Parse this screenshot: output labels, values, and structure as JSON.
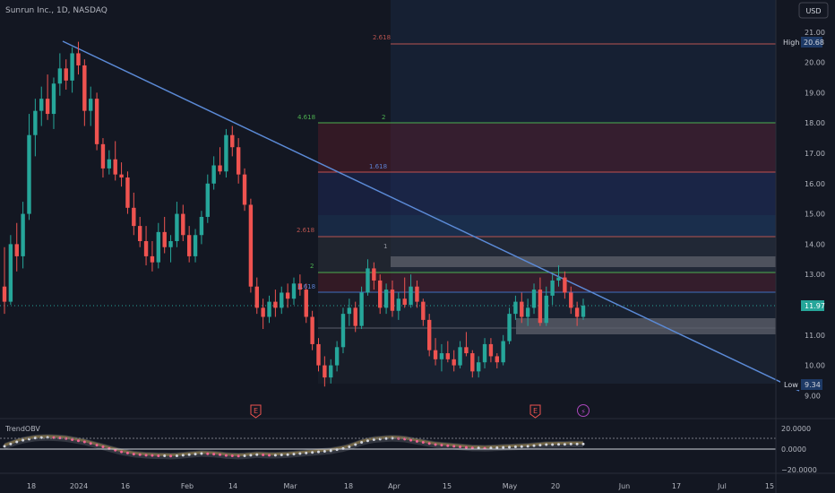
{
  "header": {
    "title": "Sunrun Inc., 1D, NASDAQ",
    "currency_button": "USD"
  },
  "price_axis": {
    "ticks": [
      {
        "label": "21.00",
        "value": 21.0
      },
      {
        "label": "20.00",
        "value": 20.0
      },
      {
        "label": "19.00",
        "value": 19.0
      },
      {
        "label": "18.00",
        "value": 18.0
      },
      {
        "label": "17.00",
        "value": 17.0
      },
      {
        "label": "16.00",
        "value": 16.0
      },
      {
        "label": "15.00",
        "value": 15.0
      },
      {
        "label": "14.00",
        "value": 14.0
      },
      {
        "label": "13.00",
        "value": 13.0
      },
      {
        "label": "11.00",
        "value": 11.0
      },
      {
        "label": "10.00",
        "value": 10.0
      },
      {
        "label": "9.00",
        "value": 9.0
      }
    ],
    "high_label": "High",
    "high_value": "20.68",
    "last_value": "11.97",
    "low_label": "Low",
    "low_value": "9.34"
  },
  "time_axis": {
    "ticks": [
      "18",
      "2024",
      "16",
      "Feb",
      "14",
      "Mar",
      "18",
      "Apr",
      "15",
      "May",
      "20",
      "Jun",
      "17",
      "Jul",
      "15"
    ]
  },
  "fib_labels": [
    {
      "label": "2.618",
      "price": 20.6
    },
    {
      "label": "4.618",
      "price": 18.0
    },
    {
      "label": "2",
      "price": 18.0
    },
    {
      "label": "1.618",
      "price": 16.6
    },
    {
      "label": "2.618",
      "price": 14.3
    },
    {
      "label": "1",
      "price": 14.0
    },
    {
      "label": "2",
      "price": 13.2
    },
    {
      "label": "1.618",
      "price": 12.5
    }
  ],
  "event_markers": [
    {
      "icon": "earnings-icon",
      "label": "E"
    },
    {
      "icon": "earnings-icon",
      "label": "E"
    },
    {
      "icon": "dividend-lightning-icon",
      "label": "⚡"
    }
  ],
  "indicator": {
    "title": "TrendOBV",
    "ticks": [
      {
        "label": "20.0000",
        "value": 20
      },
      {
        "label": "0.0000",
        "value": 0
      },
      {
        "label": "−20.0000",
        "value": -20
      }
    ]
  },
  "colors": {
    "background": "#131722",
    "up": "#26a69a",
    "down": "#ef5350",
    "trendline": "#5b8ad6"
  },
  "chart_data": {
    "type": "candlestick",
    "y_range": [
      9.0,
      21.5
    ],
    "trendline": {
      "from": 20.68,
      "to": 9.0
    },
    "high": 20.68,
    "low": 9.34,
    "last": 11.97,
    "candles": [
      [
        12.6,
        13.9,
        11.7,
        12.1
      ],
      [
        12.1,
        14.3,
        12.0,
        14.0
      ],
      [
        14.0,
        14.7,
        13.1,
        13.6
      ],
      [
        13.6,
        15.4,
        13.2,
        15.0
      ],
      [
        15.0,
        18.3,
        14.8,
        17.6
      ],
      [
        17.6,
        18.8,
        16.9,
        18.4
      ],
      [
        18.4,
        19.2,
        17.9,
        18.8
      ],
      [
        18.8,
        19.6,
        18.1,
        18.3
      ],
      [
        18.3,
        19.5,
        17.8,
        19.3
      ],
      [
        19.3,
        20.3,
        18.9,
        19.8
      ],
      [
        19.8,
        20.1,
        19.1,
        19.4
      ],
      [
        19.4,
        20.5,
        19.0,
        20.3
      ],
      [
        20.3,
        20.68,
        19.6,
        19.9
      ],
      [
        19.9,
        20.1,
        17.9,
        18.4
      ],
      [
        18.4,
        19.2,
        17.9,
        18.8
      ],
      [
        18.8,
        19.0,
        17.1,
        17.3
      ],
      [
        17.3,
        17.5,
        16.2,
        16.5
      ],
      [
        16.5,
        17.1,
        16.3,
        16.8
      ],
      [
        16.8,
        17.4,
        16.1,
        16.3
      ],
      [
        16.3,
        16.7,
        15.9,
        16.2
      ],
      [
        16.2,
        16.4,
        15.0,
        15.2
      ],
      [
        15.2,
        15.7,
        14.3,
        14.6
      ],
      [
        14.6,
        14.9,
        13.9,
        14.1
      ],
      [
        14.1,
        14.6,
        13.3,
        13.6
      ],
      [
        13.6,
        14.1,
        13.1,
        13.4
      ],
      [
        13.4,
        14.7,
        13.2,
        14.4
      ],
      [
        14.4,
        14.9,
        13.7,
        13.9
      ],
      [
        13.9,
        14.3,
        13.4,
        14.1
      ],
      [
        14.1,
        15.4,
        13.9,
        15.0
      ],
      [
        15.0,
        15.3,
        14.1,
        14.3
      ],
      [
        14.3,
        14.6,
        13.4,
        13.6
      ],
      [
        13.6,
        14.5,
        13.4,
        14.3
      ],
      [
        14.3,
        15.1,
        14.0,
        14.9
      ],
      [
        14.9,
        16.3,
        14.7,
        16.0
      ],
      [
        16.0,
        16.9,
        15.8,
        16.6
      ],
      [
        16.6,
        17.2,
        16.3,
        16.4
      ],
      [
        16.4,
        17.8,
        16.2,
        17.6
      ],
      [
        17.6,
        17.9,
        16.9,
        17.2
      ],
      [
        17.2,
        17.5,
        16.0,
        16.3
      ],
      [
        16.3,
        16.5,
        15.1,
        15.3
      ],
      [
        15.3,
        15.5,
        12.4,
        12.6
      ],
      [
        12.6,
        12.9,
        11.7,
        11.9
      ],
      [
        11.9,
        12.2,
        11.2,
        11.6
      ],
      [
        11.6,
        12.3,
        11.4,
        12.1
      ],
      [
        12.1,
        12.5,
        11.6,
        11.9
      ],
      [
        11.9,
        12.6,
        11.7,
        12.4
      ],
      [
        12.4,
        12.7,
        11.9,
        12.2
      ],
      [
        12.2,
        12.9,
        12.0,
        12.7
      ],
      [
        12.7,
        13.0,
        12.3,
        12.5
      ],
      [
        12.5,
        12.7,
        11.4,
        11.6
      ],
      [
        11.6,
        11.8,
        10.5,
        10.7
      ],
      [
        10.7,
        10.9,
        9.8,
        10.0
      ],
      [
        10.0,
        10.3,
        9.3,
        9.6
      ],
      [
        9.6,
        10.2,
        9.4,
        10.0
      ],
      [
        10.0,
        10.8,
        9.8,
        10.6
      ],
      [
        10.6,
        11.9,
        10.4,
        11.7
      ],
      [
        11.7,
        12.2,
        11.3,
        11.9
      ],
      [
        11.9,
        12.1,
        11.1,
        11.3
      ],
      [
        11.3,
        12.6,
        11.2,
        12.4
      ],
      [
        12.4,
        13.5,
        12.3,
        13.2
      ],
      [
        13.2,
        13.4,
        12.5,
        12.8
      ],
      [
        12.8,
        13.0,
        11.7,
        11.9
      ],
      [
        11.9,
        12.7,
        11.7,
        12.5
      ],
      [
        12.5,
        12.8,
        11.6,
        11.8
      ],
      [
        11.8,
        12.4,
        11.5,
        12.2
      ],
      [
        12.2,
        12.9,
        11.9,
        12.0
      ],
      [
        12.0,
        13.0,
        11.9,
        12.6
      ],
      [
        12.6,
        12.8,
        11.9,
        12.1
      ],
      [
        12.1,
        12.2,
        11.3,
        11.5
      ],
      [
        11.5,
        11.7,
        10.3,
        10.5
      ],
      [
        10.5,
        10.9,
        10.0,
        10.2
      ],
      [
        10.2,
        10.7,
        9.8,
        10.4
      ],
      [
        10.4,
        10.8,
        10.1,
        10.2
      ],
      [
        10.2,
        10.5,
        9.8,
        10.0
      ],
      [
        10.0,
        10.8,
        9.9,
        10.6
      ],
      [
        10.6,
        11.1,
        10.3,
        10.4
      ],
      [
        10.4,
        10.5,
        9.6,
        9.8
      ],
      [
        9.8,
        10.3,
        9.6,
        10.1
      ],
      [
        10.1,
        10.9,
        9.9,
        10.7
      ],
      [
        10.7,
        10.9,
        10.1,
        10.3
      ],
      [
        10.3,
        10.4,
        9.9,
        10.1
      ],
      [
        10.1,
        11.0,
        10.0,
        10.8
      ],
      [
        10.8,
        11.9,
        10.7,
        11.7
      ],
      [
        11.7,
        12.3,
        11.5,
        12.1
      ],
      [
        12.1,
        12.4,
        11.4,
        11.6
      ],
      [
        11.6,
        12.2,
        11.3,
        11.9
      ],
      [
        11.9,
        12.7,
        11.7,
        12.5
      ],
      [
        12.5,
        12.9,
        11.3,
        11.4
      ],
      [
        11.4,
        12.6,
        11.3,
        12.3
      ],
      [
        12.3,
        13.0,
        12.0,
        12.8
      ],
      [
        12.8,
        13.3,
        12.6,
        12.9
      ],
      [
        12.9,
        13.1,
        12.2,
        12.4
      ],
      [
        12.4,
        12.6,
        11.7,
        11.9
      ],
      [
        11.9,
        12.1,
        11.3,
        11.6
      ],
      [
        11.6,
        12.2,
        11.5,
        11.97
      ]
    ],
    "indicator_series": [
      5,
      9,
      13,
      16,
      18,
      20,
      20.5,
      21,
      20.5,
      20,
      19,
      17,
      15,
      13,
      10,
      7,
      4,
      1,
      -2,
      -5,
      -7,
      -9,
      -10,
      -11,
      -11.5,
      -12,
      -12,
      -12.5,
      -12,
      -11,
      -10,
      -9,
      -8,
      -8.5,
      -9,
      -10,
      -11.5,
      -12,
      -12.5,
      -12,
      -11,
      -10,
      -10.5,
      -11,
      -11,
      -10.5,
      -10,
      -9,
      -8,
      -7,
      -6,
      -5,
      -4,
      -3,
      -1,
      1,
      4,
      8,
      12,
      15,
      17,
      18,
      19,
      19.5,
      19,
      18,
      16,
      14,
      12,
      10,
      8,
      7,
      6,
      5,
      4,
      3,
      2,
      2,
      1.5,
      2,
      2.5,
      3,
      3.5,
      4,
      4.5,
      5,
      6,
      7,
      8,
      8,
      8.5,
      8.5,
      9,
      9,
      9
    ]
  }
}
